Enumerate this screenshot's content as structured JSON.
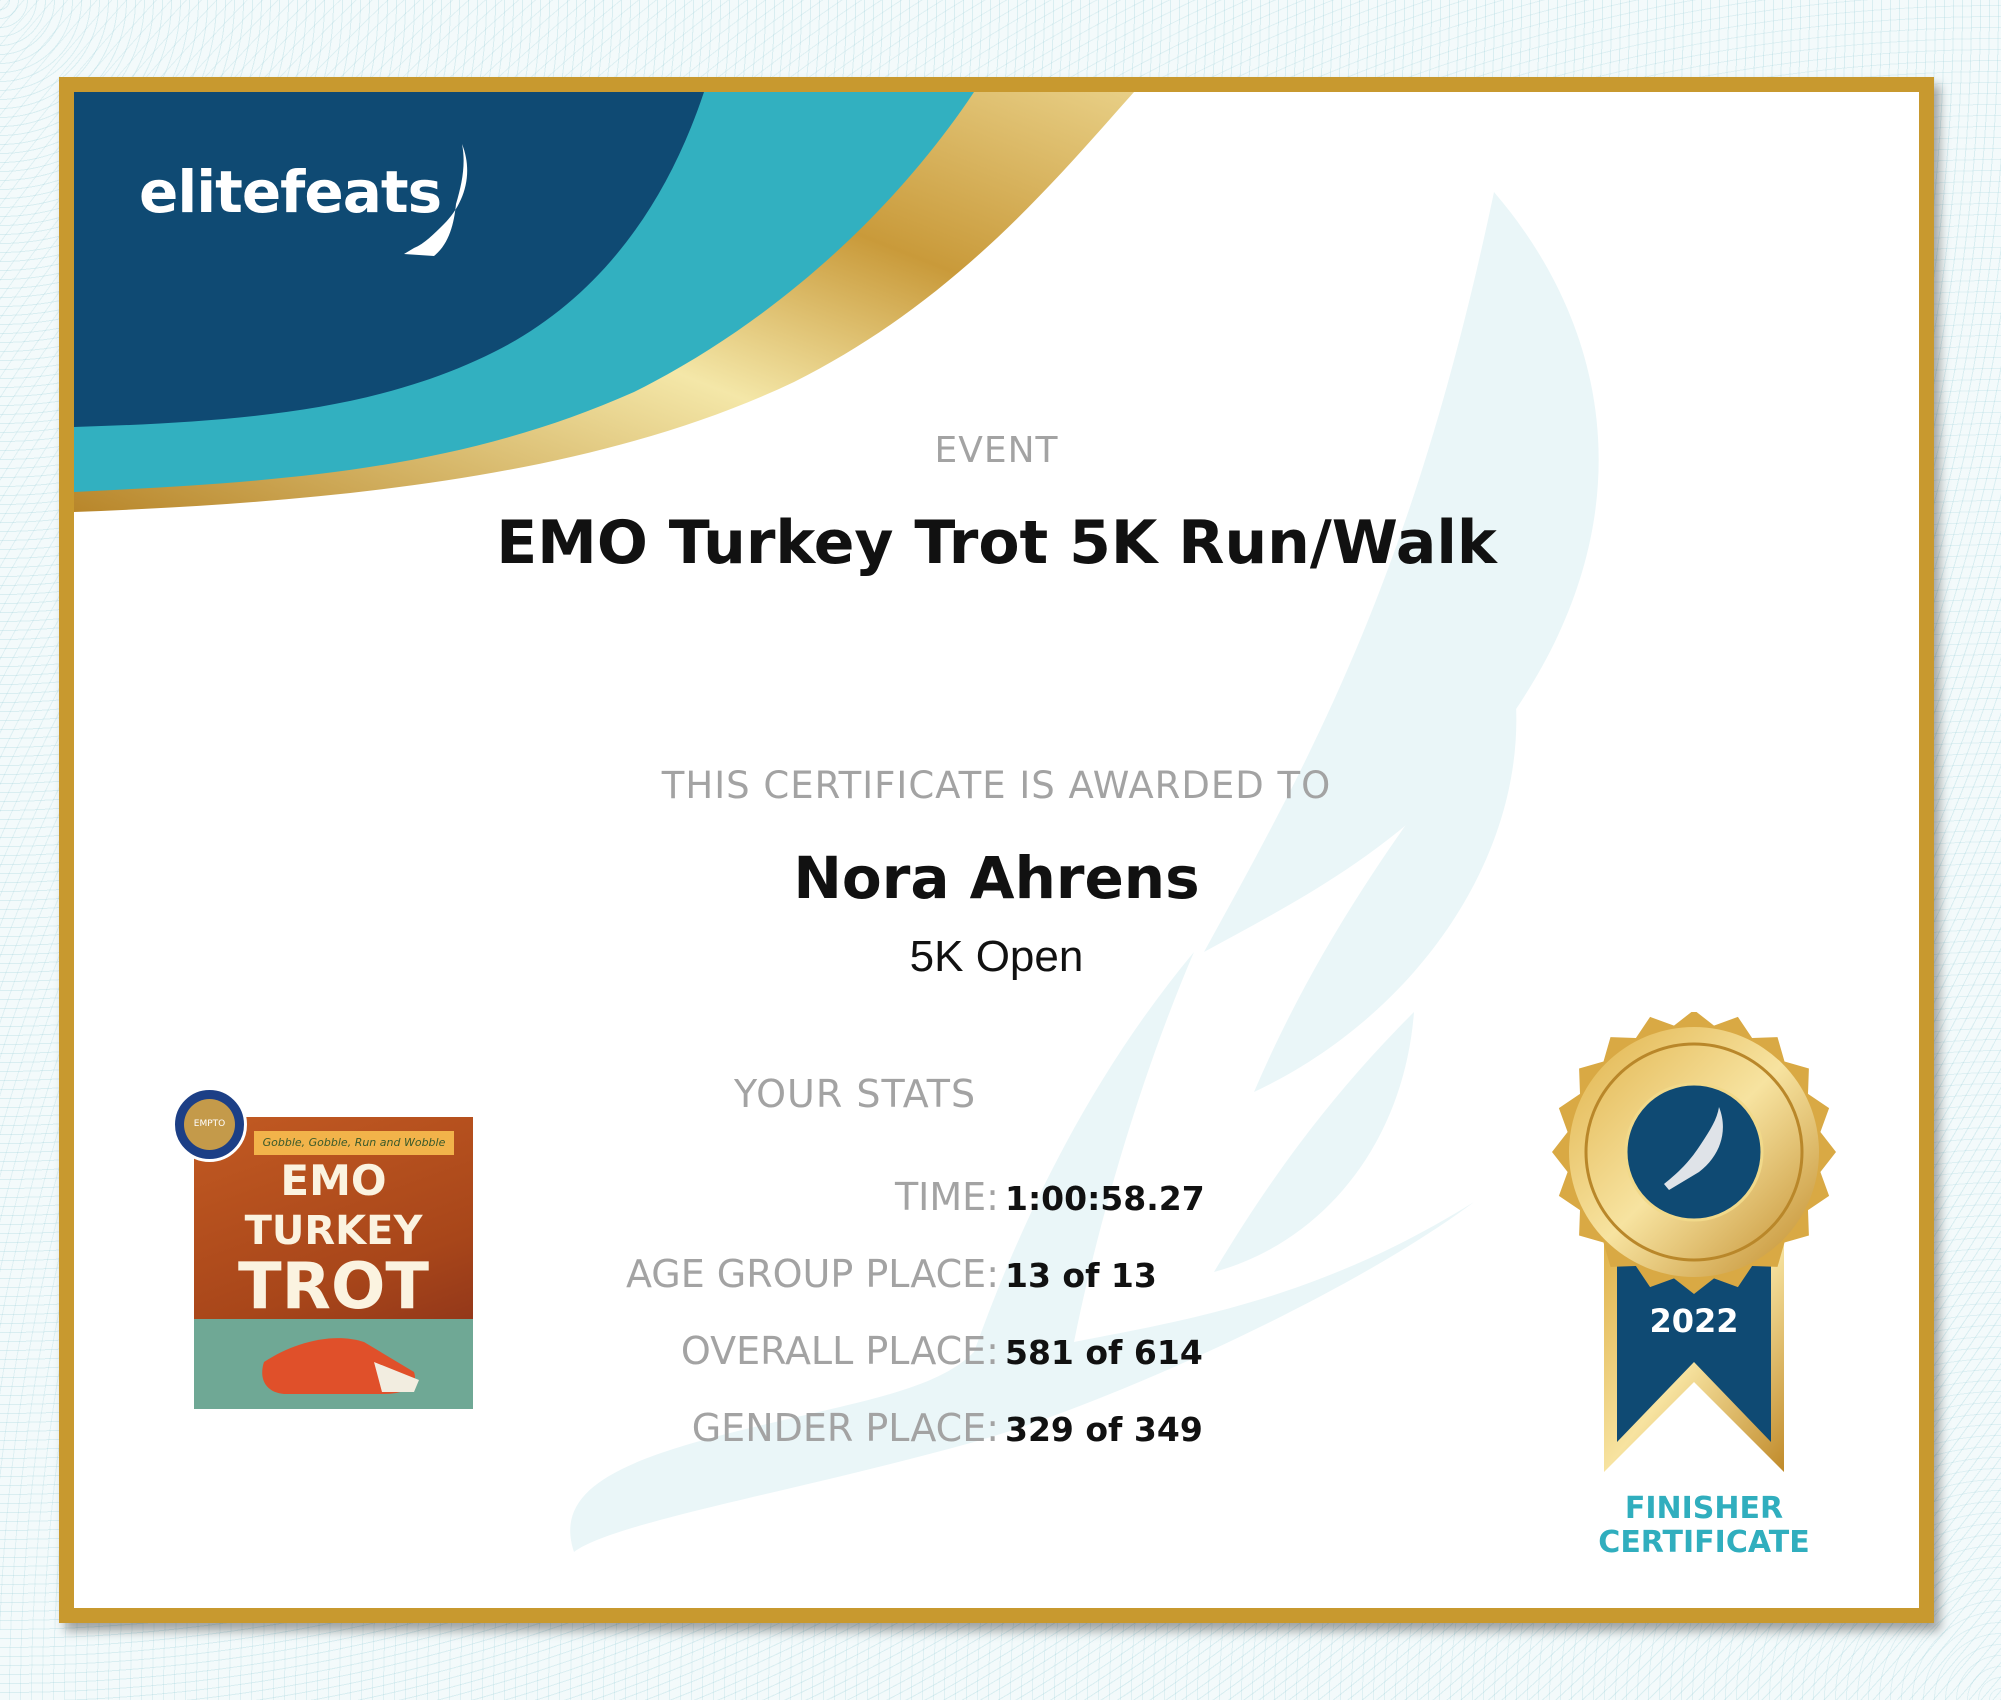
{
  "brand": {
    "logo_text": "elitefeats",
    "logo_icon": "winged-shoe-icon"
  },
  "event": {
    "label": "EVENT",
    "name": "EMO Turkey Trot 5K Run/Walk"
  },
  "award": {
    "label": "THIS CERTIFICATE IS AWARDED TO",
    "recipient": "Nora Ahrens",
    "division": "5K Open"
  },
  "stats": {
    "heading": "YOUR STATS",
    "rows": [
      {
        "label": "TIME:",
        "value": "1:00:58.27"
      },
      {
        "label": "AGE GROUP PLACE:",
        "value": "13 of 13"
      },
      {
        "label": "OVERALL PLACE:",
        "value": "581 of 614"
      },
      {
        "label": "GENDER PLACE:",
        "value": "329 of 349"
      }
    ]
  },
  "event_logo": {
    "banner": "Gobble, Gobble, Run and Wobble",
    "lines": [
      "EMO",
      "TURKEY",
      "TROT"
    ],
    "seal_text": "EMPTO"
  },
  "medal": {
    "year": "2022",
    "caption_line1": "FINISHER",
    "caption_line2": "CERTIFICATE"
  },
  "colors": {
    "navy": "#0f4a73",
    "teal": "#32b0c0",
    "gold": "#c8992f",
    "label_gray": "#a3a3a3"
  }
}
